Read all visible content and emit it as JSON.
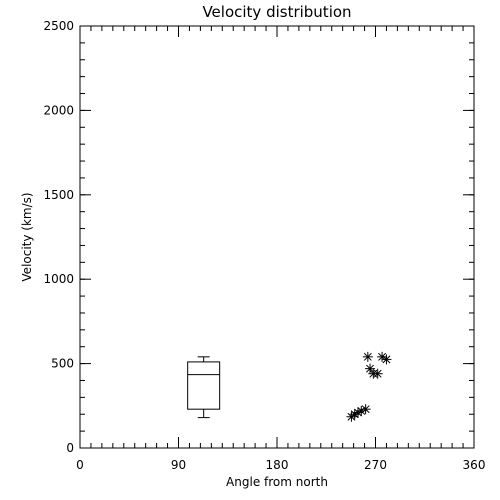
{
  "chart_data": {
    "type": "scatter",
    "title": "Velocity distribution",
    "xlabel": "Angle from north",
    "ylabel": "Velocity (km/s)",
    "xlim": [
      0,
      360
    ],
    "ylim": [
      0,
      2500
    ],
    "xticks": [
      0,
      90,
      180,
      270,
      360
    ],
    "yticks": [
      0,
      500,
      1000,
      1500,
      2000,
      2500
    ],
    "x_minor_step": 10,
    "y_minor_step": 100,
    "grid": false,
    "boxplot": {
      "x": 113,
      "whisker_low": 180,
      "q1": 230,
      "median": 435,
      "q3": 510,
      "whisker_high": 540
    },
    "points": [
      {
        "x": 248,
        "y": 185
      },
      {
        "x": 251,
        "y": 200
      },
      {
        "x": 254,
        "y": 210
      },
      {
        "x": 257,
        "y": 220
      },
      {
        "x": 261,
        "y": 230
      },
      {
        "x": 263,
        "y": 540
      },
      {
        "x": 265,
        "y": 470
      },
      {
        "x": 268,
        "y": 440
      },
      {
        "x": 272,
        "y": 440
      },
      {
        "x": 276,
        "y": 540
      },
      {
        "x": 280,
        "y": 525
      }
    ]
  }
}
